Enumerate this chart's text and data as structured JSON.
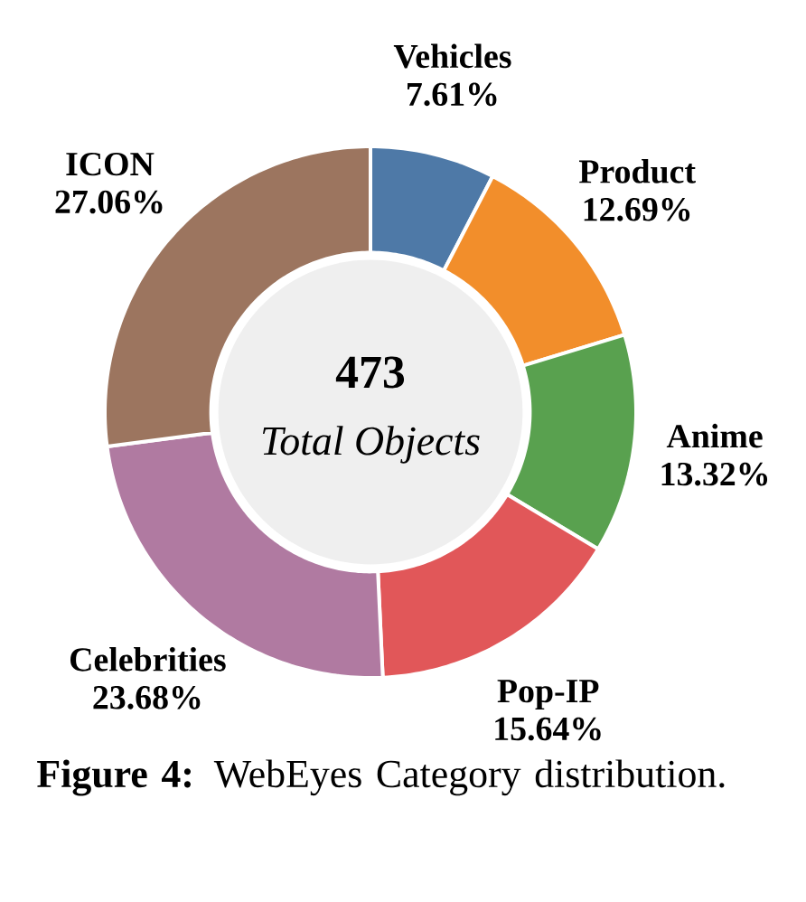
{
  "chart_data": {
    "type": "donut",
    "categories": [
      "Vehicles",
      "Product",
      "Anime",
      "Pop-IP",
      "Celebrities",
      "ICON"
    ],
    "values": [
      7.61,
      12.69,
      13.32,
      15.64,
      23.68,
      27.06
    ],
    "colors": [
      "#4e79a7",
      "#f28e2b",
      "#59a14f",
      "#e15759",
      "#b07aa1",
      "#9c755f"
    ],
    "value_labels": [
      "7.61%",
      "12.69%",
      "13.32%",
      "15.64%",
      "23.68%",
      "27.06%"
    ],
    "annotations": [
      "473",
      "Total Objects",
      "**Figure 4:** WebEyes Category distribution."
    ]
  }
}
